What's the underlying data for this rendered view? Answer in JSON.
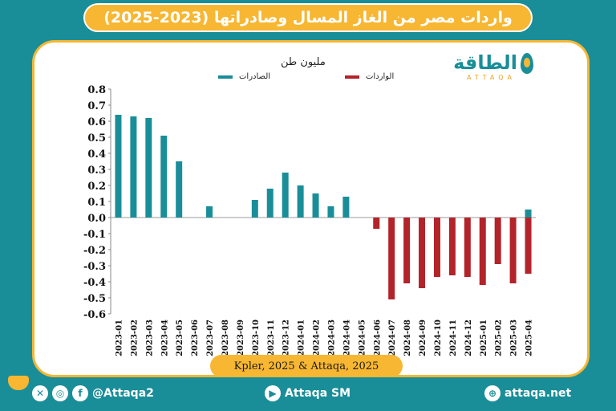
{
  "title": "واردات مصر من الغاز المسال وصادراتها (2023-2025)",
  "logo": {
    "name": "الطاقة",
    "latin": "ATTAQA"
  },
  "chart_data": {
    "type": "bar",
    "unit_label": "مليون طن",
    "categories": [
      "2023-01",
      "2023-02",
      "2023-03",
      "2023-04",
      "2023-05",
      "2023-06",
      "2023-07",
      "2023-08",
      "2023-09",
      "2023-10",
      "2023-11",
      "2023-12",
      "2024-01",
      "2024-02",
      "2024-03",
      "2024-04",
      "2024-05",
      "2024-06",
      "2024-07",
      "2024-08",
      "2024-09",
      "2024-10",
      "2024-11",
      "2024-12",
      "2025-01",
      "2025-02",
      "2025-03",
      "2025-04"
    ],
    "series": [
      {
        "name": "الصادرات",
        "color": "#1a8e98",
        "values": [
          0.64,
          0.63,
          0.62,
          0.51,
          0.35,
          0,
          0.07,
          0,
          0,
          0.11,
          0.18,
          0.28,
          0.2,
          0.15,
          0.07,
          0.13,
          0,
          0,
          0,
          0,
          0,
          0,
          0,
          0,
          0,
          0,
          0,
          0.05
        ]
      },
      {
        "name": "الواردات",
        "color": "#b3232a",
        "values": [
          0,
          0,
          0,
          0,
          0,
          0,
          0,
          0,
          0,
          0,
          0,
          0,
          0,
          0,
          0,
          0,
          0,
          -0.07,
          -0.51,
          -0.41,
          -0.44,
          -0.37,
          -0.36,
          -0.37,
          -0.42,
          -0.29,
          -0.41,
          -0.35
        ]
      }
    ],
    "ylim": [
      -0.6,
      0.8
    ],
    "yticks": [
      "0.8",
      "0.7",
      "0.6",
      "0.5",
      "0.4",
      "0.3",
      "0.2",
      "0.1",
      "0.0",
      "-0.1",
      "-0.2",
      "-0.3",
      "-0.4",
      "-0.5",
      "-0.6"
    ],
    "grid": false
  },
  "source": "Kpler, 2025 & Attaqa, 2025",
  "footer": {
    "handle": "@Attaqa2",
    "youtube": "Attaqa SM",
    "website": "attaqa.net"
  }
}
